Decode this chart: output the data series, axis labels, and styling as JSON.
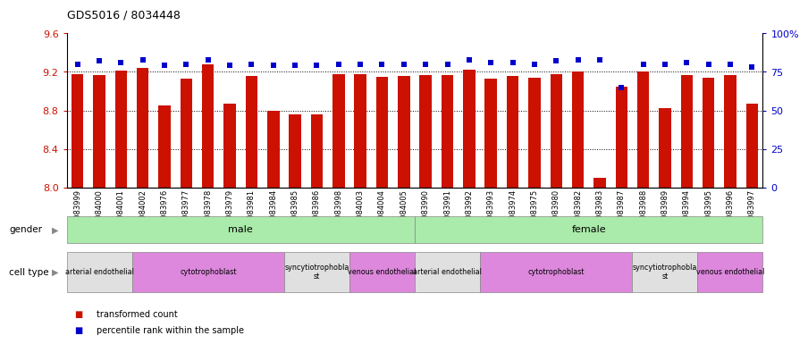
{
  "title": "GDS5016 / 8034448",
  "samples": [
    "GSM1083999",
    "GSM1084000",
    "GSM1084001",
    "GSM1084002",
    "GSM1083976",
    "GSM1083977",
    "GSM1083978",
    "GSM1083979",
    "GSM1083981",
    "GSM1083984",
    "GSM1083985",
    "GSM1083986",
    "GSM1083998",
    "GSM1084003",
    "GSM1084004",
    "GSM1084005",
    "GSM1083990",
    "GSM1083991",
    "GSM1083992",
    "GSM1083993",
    "GSM1083974",
    "GSM1083975",
    "GSM1083980",
    "GSM1083982",
    "GSM1083983",
    "GSM1083987",
    "GSM1083988",
    "GSM1083989",
    "GSM1083994",
    "GSM1083995",
    "GSM1083996",
    "GSM1083997"
  ],
  "bar_values": [
    9.18,
    9.17,
    9.21,
    9.24,
    8.85,
    9.13,
    9.28,
    8.87,
    9.16,
    8.8,
    8.76,
    8.76,
    9.18,
    9.18,
    9.15,
    9.16,
    9.17,
    9.17,
    9.22,
    9.13,
    9.16,
    9.14,
    9.18,
    9.2,
    8.1,
    9.05,
    9.2,
    8.82,
    9.17,
    9.14,
    9.17,
    8.87
  ],
  "dot_values": [
    80,
    82,
    81,
    83,
    79,
    80,
    83,
    79,
    80,
    79,
    79,
    79,
    80,
    80,
    80,
    80,
    80,
    80,
    83,
    81,
    81,
    80,
    82,
    83,
    83,
    65,
    80,
    80,
    81,
    80,
    80,
    78
  ],
  "bar_color": "#cc1100",
  "dot_color": "#0000cc",
  "ylim_left": [
    8.0,
    9.6
  ],
  "ylim_right": [
    0,
    100
  ],
  "yticks_left": [
    8.0,
    8.4,
    8.8,
    9.2,
    9.6
  ],
  "yticks_right": [
    0,
    25,
    50,
    75,
    100
  ],
  "ytick_labels_right": [
    "0",
    "25",
    "50",
    "75",
    "100%"
  ],
  "hgrid_vals": [
    8.4,
    8.8,
    9.2
  ],
  "gender_labels": [
    {
      "label": "male",
      "start": 0,
      "end": 16,
      "color": "#aaeaaa"
    },
    {
      "label": "female",
      "start": 16,
      "end": 32,
      "color": "#aaeaaa"
    }
  ],
  "cell_type_labels": [
    {
      "label": "arterial endothelial",
      "start": 0,
      "end": 3,
      "color": "#e0e0e0"
    },
    {
      "label": "cytotrophoblast",
      "start": 3,
      "end": 10,
      "color": "#dd88dd"
    },
    {
      "label": "syncytiotrophoblast",
      "start": 10,
      "end": 13,
      "color": "#e0e0e0"
    },
    {
      "label": "venous endothelial",
      "start": 13,
      "end": 16,
      "color": "#dd88dd"
    },
    {
      "label": "arterial endothelial",
      "start": 16,
      "end": 19,
      "color": "#e0e0e0"
    },
    {
      "label": "cytotrophoblast",
      "start": 19,
      "end": 26,
      "color": "#dd88dd"
    },
    {
      "label": "syncytiotrophoblast",
      "start": 26,
      "end": 29,
      "color": "#e0e0e0"
    },
    {
      "label": "venous endothelial",
      "start": 29,
      "end": 32,
      "color": "#dd88dd"
    }
  ],
  "legend_items": [
    {
      "label": "transformed count",
      "color": "#cc1100"
    },
    {
      "label": "percentile rank within the sample",
      "color": "#0000cc"
    }
  ],
  "bg_color": "#ffffff",
  "label_area_color": "#d8d8d8"
}
